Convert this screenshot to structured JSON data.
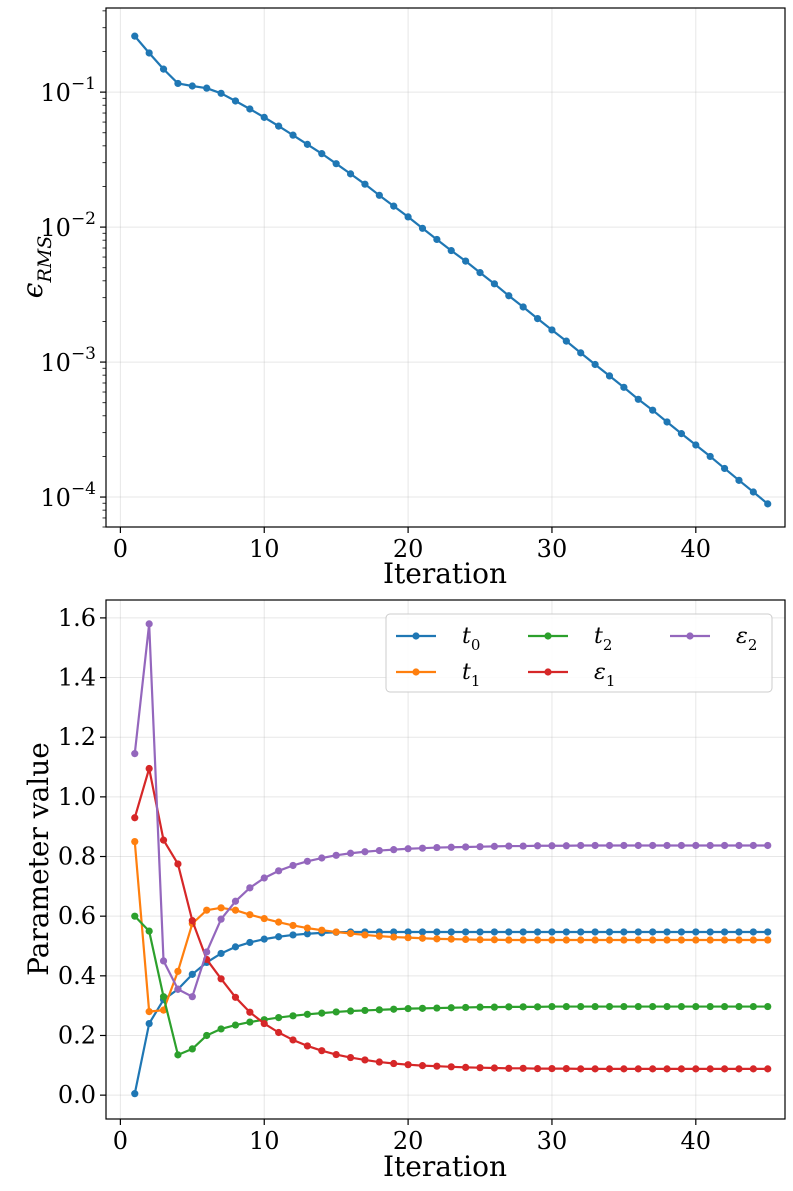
{
  "chart_data": [
    {
      "type": "line",
      "yscale": "log",
      "xlabel": "Iteration",
      "ylabel": "ϵ",
      "ylabel_sub": "RMS",
      "xlim": [
        -1,
        46.2
      ],
      "ylim": [
        6e-05,
        0.42
      ],
      "xticks": [
        0,
        10,
        20,
        30,
        40
      ],
      "yticks": [
        {
          "value": 0.1,
          "base": "10",
          "exp": "−1"
        },
        {
          "value": 0.01,
          "base": "10",
          "exp": "−2"
        },
        {
          "value": 0.001,
          "base": "10",
          "exp": "−3"
        },
        {
          "value": 0.0001,
          "base": "10",
          "exp": "−4"
        }
      ],
      "grid": true,
      "series": [
        {
          "name": "ϵRMS",
          "color": "#1f77b4",
          "x": [
            1,
            2,
            3,
            4,
            5,
            6,
            7,
            8,
            9,
            10,
            11,
            12,
            13,
            14,
            15,
            16,
            17,
            18,
            19,
            20,
            21,
            22,
            23,
            24,
            25,
            26,
            27,
            28,
            29,
            30,
            31,
            32,
            33,
            34,
            35,
            36,
            37,
            38,
            39,
            40,
            41,
            42,
            43,
            44,
            45
          ],
          "values": [
            0.26,
            0.195,
            0.148,
            0.116,
            0.111,
            0.107,
            0.098,
            0.086,
            0.075,
            0.065,
            0.056,
            0.048,
            0.041,
            0.035,
            0.0295,
            0.0248,
            0.0208,
            0.0172,
            0.0143,
            0.0119,
            0.0098,
            0.0081,
            0.0067,
            0.0056,
            0.0046,
            0.0038,
            0.0031,
            0.00256,
            0.0021,
            0.00173,
            0.00143,
            0.00117,
            0.00096,
            0.00079,
            0.00065,
            0.00053,
            0.00044,
            0.00036,
            0.000295,
            0.000243,
            0.0002,
            0.000163,
            0.000133,
            0.000109,
            8.9e-05
          ]
        }
      ]
    },
    {
      "type": "line",
      "xlabel": "Iteration",
      "ylabel": "Parameter value",
      "xlim": [
        -1,
        46.2
      ],
      "ylim": [
        -0.08,
        1.66
      ],
      "xticks": [
        0,
        10,
        20,
        30,
        40
      ],
      "yticks": [
        "0.0",
        "0.2",
        "0.4",
        "0.6",
        "0.8",
        "1.0",
        "1.2",
        "1.4",
        "1.6"
      ],
      "grid": true,
      "legend_position": "top-right",
      "series": [
        {
          "name": "t",
          "sub": "0",
          "color": "#1f77b4",
          "x": [
            1,
            2,
            3,
            4,
            5,
            6,
            7,
            8,
            9,
            10,
            11,
            12,
            13,
            14,
            15,
            16,
            17,
            18,
            19,
            20,
            21,
            22,
            23,
            24,
            25,
            26,
            27,
            28,
            29,
            30,
            31,
            32,
            33,
            34,
            35,
            36,
            37,
            38,
            39,
            40,
            41,
            42,
            43,
            44,
            45
          ],
          "values": [
            0.005,
            0.24,
            0.32,
            0.355,
            0.405,
            0.445,
            0.475,
            0.497,
            0.512,
            0.523,
            0.531,
            0.537,
            0.541,
            0.544,
            0.546,
            0.547,
            0.547,
            0.547,
            0.547,
            0.547,
            0.547,
            0.547,
            0.547,
            0.547,
            0.547,
            0.547,
            0.547,
            0.547,
            0.547,
            0.547,
            0.547,
            0.547,
            0.547,
            0.547,
            0.547,
            0.547,
            0.547,
            0.547,
            0.547,
            0.547,
            0.547,
            0.547,
            0.547,
            0.547,
            0.547
          ]
        },
        {
          "name": "t",
          "sub": "1",
          "color": "#ff7f0e",
          "x": [
            1,
            2,
            3,
            4,
            5,
            6,
            7,
            8,
            9,
            10,
            11,
            12,
            13,
            14,
            15,
            16,
            17,
            18,
            19,
            20,
            21,
            22,
            23,
            24,
            25,
            26,
            27,
            28,
            29,
            30,
            31,
            32,
            33,
            34,
            35,
            36,
            37,
            38,
            39,
            40,
            41,
            42,
            43,
            44,
            45
          ],
          "values": [
            0.85,
            0.28,
            0.285,
            0.415,
            0.575,
            0.62,
            0.628,
            0.62,
            0.605,
            0.592,
            0.58,
            0.569,
            0.56,
            0.553,
            0.547,
            0.542,
            0.537,
            0.533,
            0.53,
            0.528,
            0.526,
            0.524,
            0.523,
            0.522,
            0.521,
            0.521,
            0.52,
            0.52,
            0.52,
            0.52,
            0.52,
            0.52,
            0.52,
            0.52,
            0.52,
            0.52,
            0.52,
            0.52,
            0.52,
            0.52,
            0.52,
            0.52,
            0.52,
            0.52,
            0.52
          ]
        },
        {
          "name": "t",
          "sub": "2",
          "color": "#2ca02c",
          "x": [
            1,
            2,
            3,
            4,
            5,
            6,
            7,
            8,
            9,
            10,
            11,
            12,
            13,
            14,
            15,
            16,
            17,
            18,
            19,
            20,
            21,
            22,
            23,
            24,
            25,
            26,
            27,
            28,
            29,
            30,
            31,
            32,
            33,
            34,
            35,
            36,
            37,
            38,
            39,
            40,
            41,
            42,
            43,
            44,
            45
          ],
          "values": [
            0.6,
            0.55,
            0.33,
            0.135,
            0.155,
            0.2,
            0.222,
            0.235,
            0.245,
            0.253,
            0.26,
            0.266,
            0.271,
            0.275,
            0.279,
            0.282,
            0.284,
            0.286,
            0.288,
            0.29,
            0.291,
            0.292,
            0.293,
            0.294,
            0.295,
            0.295,
            0.296,
            0.296,
            0.296,
            0.297,
            0.297,
            0.297,
            0.297,
            0.297,
            0.297,
            0.297,
            0.297,
            0.297,
            0.297,
            0.297,
            0.297,
            0.297,
            0.297,
            0.297,
            0.297
          ]
        },
        {
          "name": "ε",
          "sub": "1",
          "color": "#d62728",
          "x": [
            1,
            2,
            3,
            4,
            5,
            6,
            7,
            8,
            9,
            10,
            11,
            12,
            13,
            14,
            15,
            16,
            17,
            18,
            19,
            20,
            21,
            22,
            23,
            24,
            25,
            26,
            27,
            28,
            29,
            30,
            31,
            32,
            33,
            34,
            35,
            36,
            37,
            38,
            39,
            40,
            41,
            42,
            43,
            44,
            45
          ],
          "values": [
            0.93,
            1.095,
            0.855,
            0.775,
            0.585,
            0.455,
            0.39,
            0.328,
            0.278,
            0.24,
            0.21,
            0.185,
            0.165,
            0.149,
            0.136,
            0.126,
            0.118,
            0.111,
            0.106,
            0.102,
            0.099,
            0.097,
            0.095,
            0.093,
            0.092,
            0.091,
            0.09,
            0.09,
            0.089,
            0.089,
            0.089,
            0.088,
            0.088,
            0.088,
            0.088,
            0.088,
            0.088,
            0.088,
            0.088,
            0.088,
            0.088,
            0.088,
            0.088,
            0.088,
            0.088
          ]
        },
        {
          "name": "ε",
          "sub": "2",
          "color": "#9467bd",
          "x": [
            1,
            2,
            3,
            4,
            5,
            6,
            7,
            8,
            9,
            10,
            11,
            12,
            13,
            14,
            15,
            16,
            17,
            18,
            19,
            20,
            21,
            22,
            23,
            24,
            25,
            26,
            27,
            28,
            29,
            30,
            31,
            32,
            33,
            34,
            35,
            36,
            37,
            38,
            39,
            40,
            41,
            42,
            43,
            44,
            45
          ],
          "values": [
            1.145,
            1.58,
            0.45,
            0.355,
            0.33,
            0.48,
            0.59,
            0.65,
            0.695,
            0.728,
            0.752,
            0.77,
            0.784,
            0.795,
            0.804,
            0.811,
            0.816,
            0.82,
            0.823,
            0.826,
            0.828,
            0.83,
            0.831,
            0.832,
            0.833,
            0.834,
            0.835,
            0.835,
            0.836,
            0.836,
            0.836,
            0.837,
            0.837,
            0.837,
            0.837,
            0.837,
            0.837,
            0.837,
            0.837,
            0.837,
            0.837,
            0.837,
            0.837,
            0.837,
            0.837
          ]
        }
      ]
    }
  ]
}
